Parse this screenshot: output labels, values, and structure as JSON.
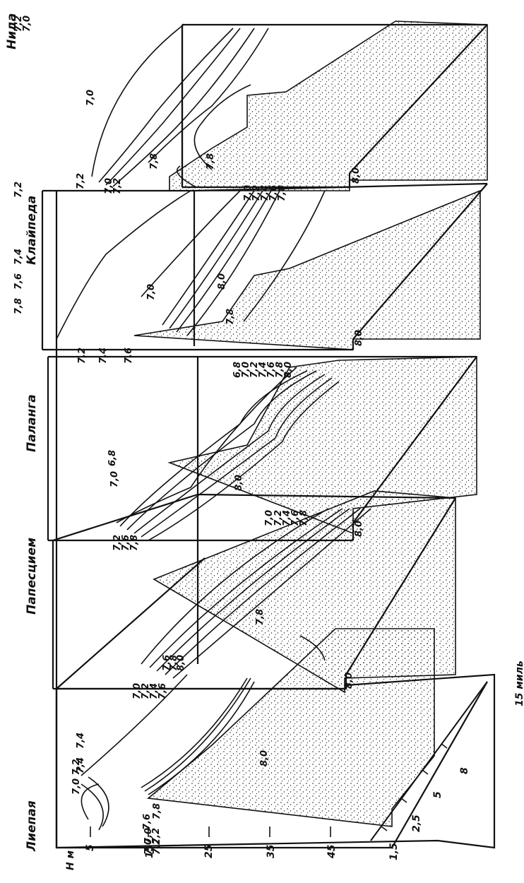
{
  "towns": [
    "Лиепая",
    "Папесцием",
    "Паланга",
    "Клайпеда",
    "Нида"
  ],
  "depth_axis": {
    "title": "Н м",
    "ticks": [
      "5",
      "15",
      "25",
      "35",
      "45"
    ]
  },
  "distance_axis": {
    "title": "15 миль",
    "ticks": [
      "1,5",
      "2,5",
      "5",
      "8"
    ]
  },
  "panels": [
    {
      "top_labels": [
        "7,0",
        "7,2",
        "7,4",
        "7,6"
      ],
      "inner_labels": [
        "7,0 7,2",
        "7,4",
        "7,4",
        "7,6",
        "7,8",
        "7,6",
        "7,8",
        "8,0",
        "8,0",
        "7,0",
        "7,2"
      ]
    },
    {
      "top_labels": [
        "7,0",
        "7,2",
        "7,4",
        "7,6"
      ],
      "far_labels": [
        "7,0",
        "7,2",
        "7,4",
        "7,6",
        "7,8"
      ],
      "inner_labels": [
        "7,8"
      ],
      "bottom_label": "8,0"
    },
    {
      "top_labels": [
        "7,2",
        "7,6",
        "7,8"
      ],
      "far_labels": [
        "6,8",
        "7,0",
        "7,2",
        "7,4",
        "7,6",
        "7,8",
        "8,0"
      ],
      "inner_labels": [
        "7,0",
        "6,8",
        "8,0"
      ],
      "bottom_label": "8,0"
    },
    {
      "top_labels": [
        "7,2",
        "7,4",
        "7,6"
      ],
      "far_labels": [
        "7,0",
        "7,2",
        "7,4",
        "7,6",
        "7,8"
      ],
      "inner_labels": [
        "7,0",
        "7,8",
        "8,0"
      ],
      "bottom_label": "8,0"
    },
    {
      "top_labels": [
        "7,0",
        "7,2"
      ],
      "corner_labels": [
        "7,2",
        "7,0",
        "7,2"
      ],
      "far_labels": [
        "7,2",
        "7,4",
        "7,6",
        "7,8"
      ],
      "inner_labels": [
        "7,0",
        "7,8",
        "7,8"
      ],
      "bottom_label": "8,0"
    }
  ]
}
